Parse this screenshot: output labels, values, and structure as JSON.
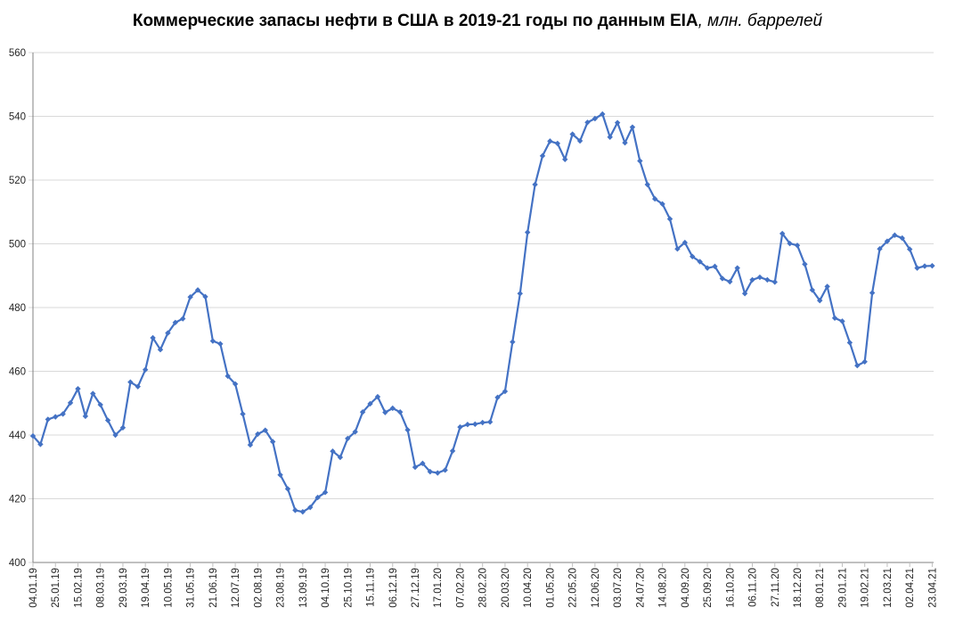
{
  "title": {
    "text_main": "Коммерческие запасы нефти в США в 2019-21 годы по данным EIA",
    "text_italic": ", млн. баррелей"
  },
  "chart_data": {
    "type": "line",
    "title": "Коммерческие запасы нефти в США в 2019-21 годы по данным EIA, млн. баррелей",
    "legend": "none",
    "grid": "horizontal",
    "marker": "diamond",
    "ylim": [
      400,
      560
    ],
    "y_tick_step": 20,
    "y_tick_labels": [
      "400",
      "420",
      "440",
      "460",
      "480",
      "500",
      "520",
      "540",
      "560"
    ],
    "x_tick_every": 3,
    "x": [
      "04.01.19",
      "11.01.19",
      "18.01.19",
      "25.01.19",
      "01.02.19",
      "08.02.19",
      "15.02.19",
      "22.02.19",
      "01.03.19",
      "08.03.19",
      "15.03.19",
      "22.03.19",
      "29.03.19",
      "05.04.19",
      "12.04.19",
      "19.04.19",
      "26.04.19",
      "03.05.19",
      "10.05.19",
      "17.05.19",
      "24.05.19",
      "31.05.19",
      "07.06.19",
      "14.06.19",
      "21.06.19",
      "28.06.19",
      "05.07.19",
      "12.07.19",
      "19.07.19",
      "26.07.19",
      "02.08.19",
      "09.08.19",
      "16.08.19",
      "23.08.19",
      "30.08.19",
      "06.09.19",
      "13.09.19",
      "20.09.19",
      "27.09.19",
      "04.10.19",
      "11.10.19",
      "18.10.19",
      "25.10.19",
      "01.11.19",
      "08.11.19",
      "15.11.19",
      "22.11.19",
      "29.11.19",
      "06.12.19",
      "13.12.19",
      "20.12.19",
      "27.12.19",
      "03.01.20",
      "10.01.20",
      "17.01.20",
      "24.01.20",
      "31.01.20",
      "07.02.20",
      "14.02.20",
      "21.02.20",
      "28.02.20",
      "06.03.20",
      "13.03.20",
      "20.03.20",
      "27.03.20",
      "03.04.20",
      "10.04.20",
      "17.04.20",
      "24.04.20",
      "01.05.20",
      "08.05.20",
      "15.05.20",
      "22.05.20",
      "29.05.20",
      "05.06.20",
      "12.06.20",
      "19.06.20",
      "26.06.20",
      "03.07.20",
      "10.07.20",
      "17.07.20",
      "24.07.20",
      "31.07.20",
      "07.08.20",
      "14.08.20",
      "21.08.20",
      "28.08.20",
      "04.09.20",
      "11.09.20",
      "18.09.20",
      "25.09.20",
      "02.10.20",
      "09.10.20",
      "16.10.20",
      "23.10.20",
      "30.10.20",
      "06.11.20",
      "13.11.20",
      "20.11.20",
      "27.11.20",
      "04.12.20",
      "11.12.20",
      "18.12.20",
      "25.12.20",
      "01.01.21",
      "08.01.21",
      "15.01.21",
      "22.01.21",
      "29.01.21",
      "05.02.21",
      "12.02.21",
      "19.02.21",
      "26.02.21",
      "05.03.21",
      "12.03.21",
      "19.03.21",
      "26.03.21",
      "02.04.21",
      "09.04.21",
      "16.04.21",
      "23.04.21"
    ],
    "series": [
      {
        "name": "Коммерческие запасы нефти в США, млн. баррелей",
        "color": "#4472C4",
        "values": [
          439.7,
          437.1,
          444.9,
          445.7,
          446.6,
          450.1,
          454.5,
          445.9,
          453.0,
          449.5,
          444.6,
          440.0,
          442.3,
          456.6,
          455.2,
          460.5,
          470.5,
          466.8,
          472.0,
          475.3,
          476.5,
          483.3,
          485.5,
          483.4,
          469.5,
          468.6,
          458.5,
          456.0,
          446.6,
          436.9,
          440.3,
          441.5,
          437.9,
          427.5,
          423.1,
          416.4,
          415.9,
          417.3,
          420.4,
          422.0,
          434.9,
          433.0,
          438.9,
          441.0,
          447.2,
          449.8,
          452.0,
          447.1,
          448.4,
          447.2,
          441.6,
          429.9,
          431.1,
          428.5,
          428.1,
          429.0,
          435.0,
          442.5,
          443.3,
          443.4,
          443.9,
          444.1,
          451.8,
          453.7,
          469.2,
          484.4,
          503.6,
          518.6,
          527.6,
          532.2,
          531.5,
          526.5,
          534.4,
          532.3,
          538.1,
          539.3,
          540.7,
          533.5,
          538.0,
          531.7,
          536.6,
          526.0,
          518.6,
          514.1,
          512.5,
          507.8,
          498.4,
          500.4,
          496.0,
          494.4,
          492.4,
          492.9,
          489.1,
          488.1,
          492.4,
          484.4,
          488.7,
          489.5,
          488.7,
          488.0,
          503.2,
          500.1,
          499.5,
          493.6,
          485.5,
          482.2,
          486.6,
          476.7,
          475.7,
          469.0,
          461.8,
          463.0,
          484.6,
          498.4,
          500.8,
          502.7,
          501.8,
          498.3,
          492.4,
          493.0,
          493.1
        ]
      }
    ]
  },
  "colors": {
    "line": "#4472C4",
    "grid": "#D9D9D9",
    "axis": "#808080",
    "tick": "#BFBFBF",
    "label": "#262626",
    "title": "#000000",
    "background": "#FFFFFF"
  }
}
